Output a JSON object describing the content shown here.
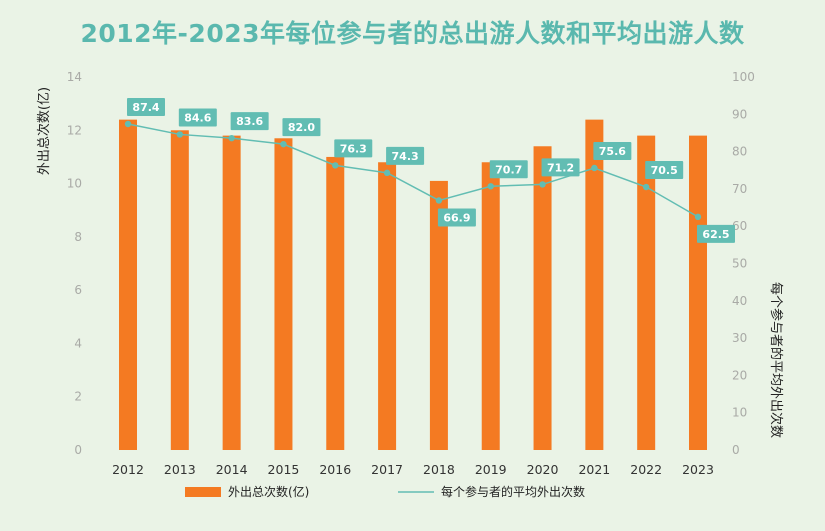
{
  "title": "2012年-2023年每位参与者的总出游人数和平均出游人数",
  "colors": {
    "bar": "#f47a22",
    "line": "#62bdb3",
    "label_bg": "#62bdb3",
    "title": "#5ab8ae",
    "background": "#eaf3e6"
  },
  "chart_data": {
    "type": "bar",
    "categories": [
      "2012",
      "2013",
      "2014",
      "2015",
      "2016",
      "2017",
      "2018",
      "2019",
      "2020",
      "2021",
      "2022",
      "2023"
    ],
    "series": [
      {
        "name": "外出总次数(亿)",
        "type": "bar",
        "axis": "left",
        "values": [
          12.4,
          12.0,
          11.8,
          11.7,
          11.0,
          10.8,
          10.1,
          10.8,
          11.4,
          12.4,
          11.8,
          11.8
        ]
      },
      {
        "name": "每个参与者的平均外出次数",
        "type": "line",
        "axis": "right",
        "values": [
          87.4,
          84.6,
          83.6,
          82.0,
          76.3,
          74.3,
          66.9,
          70.7,
          71.2,
          75.6,
          70.5,
          62.5
        ],
        "labels": [
          "87.4",
          "84.6",
          "83.6",
          "82.0",
          "76.3",
          "74.3",
          "66.9",
          "70.7",
          "71.2",
          "75.6",
          "70.5",
          "62.5"
        ]
      }
    ],
    "ylabel_left": "外出总次数(亿)",
    "ylabel_right": "每个参与者的平均外出次数",
    "ylim_left": [
      0,
      14
    ],
    "yticks_left": [
      "0",
      "2",
      "4",
      "6",
      "8",
      "10",
      "12",
      "14"
    ],
    "ylim_right": [
      0,
      100
    ],
    "yticks_right": [
      "0",
      "10",
      "20",
      "30",
      "40",
      "50",
      "60",
      "70",
      "80",
      "90",
      "100"
    ],
    "grid": false,
    "legend_position": "bottom"
  }
}
